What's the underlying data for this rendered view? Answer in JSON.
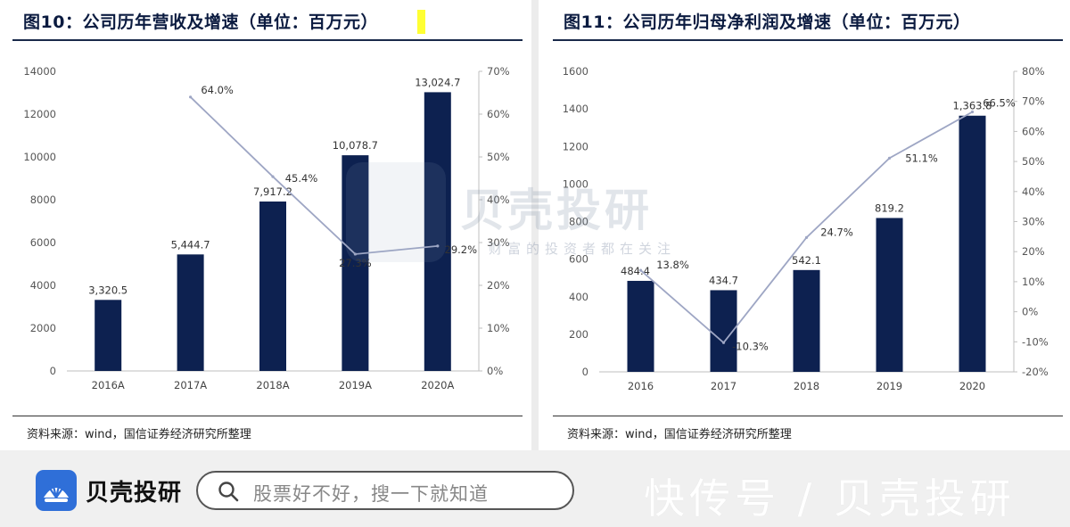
{
  "chart_data": [
    {
      "type": "bar",
      "title": "图10：公司历年营收及增速（单位：百万元）",
      "source": "资料来源：wind，国信证券经济研究所整理",
      "categories": [
        "2016A",
        "2017A",
        "2018A",
        "2019A",
        "2020A"
      ],
      "values": [
        3320.5,
        5444.7,
        7917.2,
        10078.7,
        13024.7
      ],
      "value_labels": [
        "3,320.5",
        "5,444.7",
        "7,917.2",
        "10,078.7",
        "13,024.7"
      ],
      "ylim": [
        0,
        14000
      ],
      "yticks": [
        "0",
        "2000",
        "4000",
        "6000",
        "8000",
        "10000",
        "12000",
        "14000"
      ],
      "line_series": {
        "x": [
          "2017A",
          "2018A",
          "2019A",
          "2020A"
        ],
        "values": [
          64.0,
          45.4,
          27.3,
          29.2
        ],
        "labels": [
          "64.0%",
          "45.4%",
          "27.3%",
          "29.2%"
        ]
      },
      "y2lim": [
        0,
        70
      ],
      "y2ticks": [
        "0%",
        "10%",
        "20%",
        "30%",
        "40%",
        "50%",
        "60%",
        "70%"
      ],
      "colors": {
        "bar": "#0d2150",
        "line": "#9ea6c4"
      }
    },
    {
      "type": "bar",
      "title": "图11：公司历年归母净利润及增速（单位：百万元）",
      "source": "资料来源：wind，国信证券经济研究所整理",
      "categories": [
        "2016",
        "2017",
        "2018",
        "2019",
        "2020"
      ],
      "values": [
        484.4,
        434.7,
        542.1,
        819.2,
        1363.8
      ],
      "value_labels": [
        "484.4",
        "434.7",
        "542.1",
        "819.2",
        "1,363.8"
      ],
      "ylim": [
        0,
        1600
      ],
      "yticks": [
        "0",
        "200",
        "400",
        "600",
        "800",
        "1000",
        "1200",
        "1400",
        "1600"
      ],
      "line_series": {
        "x": [
          "2016",
          "2017",
          "2018",
          "2019",
          "2020"
        ],
        "values": [
          13.8,
          -10.3,
          24.7,
          51.1,
          66.5
        ],
        "labels": [
          "13.8%",
          "-10.3%",
          "24.7%",
          "51.1%",
          "66.5%"
        ]
      },
      "y2lim": [
        -20,
        80
      ],
      "y2ticks": [
        "-20%",
        "-10%",
        "0%",
        "10%",
        "20%",
        "30%",
        "40%",
        "50%",
        "60%",
        "70%",
        "80%"
      ],
      "colors": {
        "bar": "#0d2150",
        "line": "#9ea6c4"
      }
    }
  ],
  "watermark": {
    "brand": "贝壳投研",
    "tagline": "财富的投资者都在关注"
  },
  "footer": {
    "brand": "贝壳投研",
    "search_placeholder": "股票好不好，搜一下就知道",
    "right_text": "快传号 / 贝壳投研",
    "logo_icon": "shell-logo-icon",
    "search_icon": "magnifier-icon"
  }
}
